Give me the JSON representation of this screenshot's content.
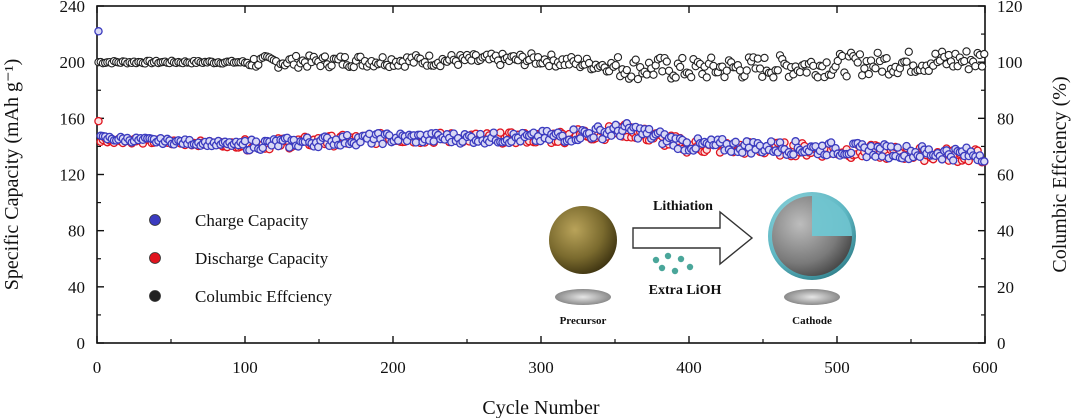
{
  "chart_data": {
    "type": "scatter",
    "title": "",
    "xlabel": "Cycle Number",
    "ylabel_left": "Specific Capacity",
    "ylabel_left_unit": "(mAh g⁻¹)",
    "ylabel_right": "Columbic Effciency (%)",
    "xlim": [
      0,
      600
    ],
    "ylim_left": [
      0,
      240
    ],
    "ylim_right": [
      0,
      120
    ],
    "x_ticks": [
      "0",
      "100",
      "200",
      "300",
      "400",
      "500",
      "600"
    ],
    "y_left_ticks": [
      "0",
      "40",
      "80",
      "120",
      "160",
      "200",
      "240"
    ],
    "y_right_ticks": [
      "0",
      "20",
      "40",
      "60",
      "80",
      "100",
      "120"
    ],
    "series": [
      {
        "name": "Charge Capacity",
        "axis": "left",
        "color": "#3b3bbf",
        "first_point": {
          "x": 1,
          "y": 222
        },
        "trend": [
          [
            0,
            146
          ],
          [
            100,
            141
          ],
          [
            200,
            146
          ],
          [
            300,
            146
          ],
          [
            360,
            152
          ],
          [
            400,
            141
          ],
          [
            500,
            138
          ],
          [
            600,
            134
          ]
        ]
      },
      {
        "name": "Discharge Capacity",
        "axis": "left",
        "color": "#e0141e",
        "first_point": {
          "x": 1,
          "y": 158
        },
        "trend": [
          [
            0,
            145
          ],
          [
            100,
            141
          ],
          [
            200,
            146
          ],
          [
            300,
            146
          ],
          [
            360,
            151
          ],
          [
            400,
            140
          ],
          [
            500,
            137
          ],
          [
            600,
            133
          ]
        ]
      },
      {
        "name": "Columbic Effciency",
        "axis": "right",
        "color": "#222222",
        "trend": [
          [
            0,
            100
          ],
          [
            100,
            100
          ],
          [
            200,
            100.5
          ],
          [
            300,
            101
          ],
          [
            360,
            98
          ],
          [
            400,
            97.5
          ],
          [
            500,
            99
          ],
          [
            600,
            101
          ]
        ]
      }
    ],
    "legend": {
      "position": "bottom-left",
      "entries": [
        "Charge Capacity",
        "Discharge Capacity",
        "Columbic Effciency"
      ]
    },
    "inset": {
      "arrow_label_top": "Lithiation",
      "arrow_label_bottom": "Extra LiOH",
      "left_label": "Precursor",
      "right_label": "Cathode",
      "colors": {
        "precursor": "#7a6a2e",
        "shell": "#5fb8c4",
        "core": "#8c8c8c",
        "dots": "#4aa69a"
      }
    }
  }
}
